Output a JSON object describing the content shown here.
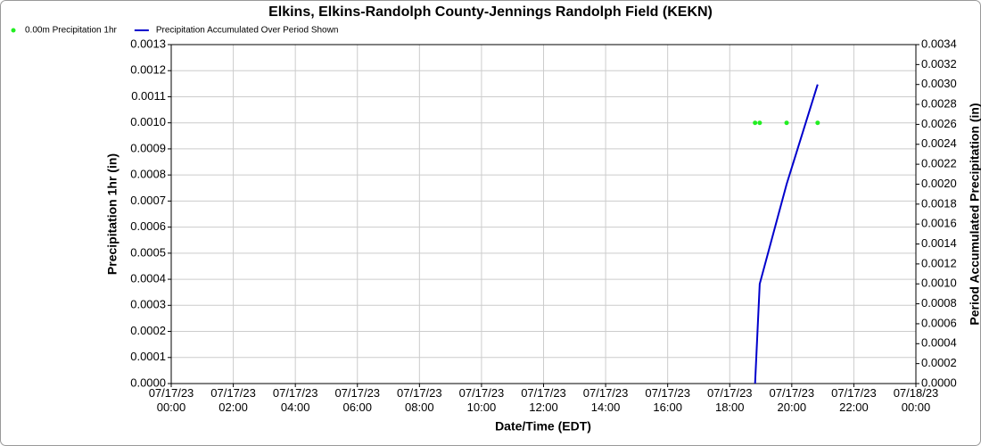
{
  "chart_data": {
    "type": "line",
    "title": "Elkins, Elkins-Randolph County-Jennings Randolph Field (KEKN)",
    "x_label": "Date/Time (EDT)",
    "y_label": "Precipitation 1hr (in)",
    "y2_label": "Period Accumulated Precipitation (in)",
    "grid": true,
    "legend": "top-left",
    "xlim": [
      "07/17/23 00:00",
      "07/18/23 00:00"
    ],
    "xticks": [
      "07/17/23 00:00",
      "07/17/23 02:00",
      "07/17/23 04:00",
      "07/17/23 06:00",
      "07/17/23 08:00",
      "07/17/23 10:00",
      "07/17/23 12:00",
      "07/17/23 14:00",
      "07/17/23 16:00",
      "07/17/23 18:00",
      "07/17/23 20:00",
      "07/17/23 22:00",
      "07/18/23 00:00"
    ],
    "ylim": [
      0,
      0.0013
    ],
    "yticks": [
      {
        "value": 0,
        "label": "0.0000"
      },
      {
        "value": 0.0001,
        "label": "0.0001"
      },
      {
        "value": 0.0002,
        "label": "0.0002"
      },
      {
        "value": 0.0003,
        "label": "0.0003"
      },
      {
        "value": 0.0004,
        "label": "0.0004"
      },
      {
        "value": 0.0005,
        "label": "0.0005"
      },
      {
        "value": 0.0006,
        "label": "0.0006"
      },
      {
        "value": 0.0007,
        "label": "0.0007"
      },
      {
        "value": 0.0008,
        "label": "0.0008"
      },
      {
        "value": 0.0009,
        "label": "0.0009"
      },
      {
        "value": 0.001,
        "label": "0.0010"
      },
      {
        "value": 0.0011,
        "label": "0.0011"
      },
      {
        "value": 0.0012,
        "label": "0.0012"
      },
      {
        "value": 0.0013,
        "label": "0.0013"
      }
    ],
    "y2lim": [
      0,
      0.0034
    ],
    "y2ticks": [
      {
        "value": 0,
        "label": "0.0000"
      },
      {
        "value": 0.0002,
        "label": "0.0002"
      },
      {
        "value": 0.0004,
        "label": "0.0004"
      },
      {
        "value": 0.0006,
        "label": "0.0006"
      },
      {
        "value": 0.0008,
        "label": "0.0008"
      },
      {
        "value": 0.001,
        "label": "0.0010"
      },
      {
        "value": 0.0012,
        "label": "0.0012"
      },
      {
        "value": 0.0014,
        "label": "0.0014"
      },
      {
        "value": 0.0016,
        "label": "0.0016"
      },
      {
        "value": 0.0018,
        "label": "0.0018"
      },
      {
        "value": 0.002,
        "label": "0.0020"
      },
      {
        "value": 0.0022,
        "label": "0.0022"
      },
      {
        "value": 0.0024,
        "label": "0.0024"
      },
      {
        "value": 0.0026,
        "label": "0.0026"
      },
      {
        "value": 0.0028,
        "label": "0.0028"
      },
      {
        "value": 0.003,
        "label": "0.0030"
      },
      {
        "value": 0.0032,
        "label": "0.0032"
      },
      {
        "value": 0.0034,
        "label": "0.0034"
      }
    ],
    "series": [
      {
        "name": "0.00m Precipitation 1hr",
        "color": "#22ee22",
        "style": "points",
        "x": [
          "07/17/23 18:49",
          "07/17/23 18:58",
          "07/17/23 19:50",
          "07/17/23 20:50"
        ],
        "values": [
          0.001,
          0.001,
          0.001,
          0.001
        ]
      },
      {
        "name": "Precipitation Accumulated Over Period Shown",
        "color": "#0000cc",
        "style": "line",
        "axis": "y2",
        "x": [
          "07/17/23 18:49",
          "07/17/23 18:58",
          "07/17/23 19:50",
          "07/17/23 20:50"
        ],
        "values": [
          0,
          0.001,
          0.002,
          0.003
        ]
      }
    ]
  }
}
